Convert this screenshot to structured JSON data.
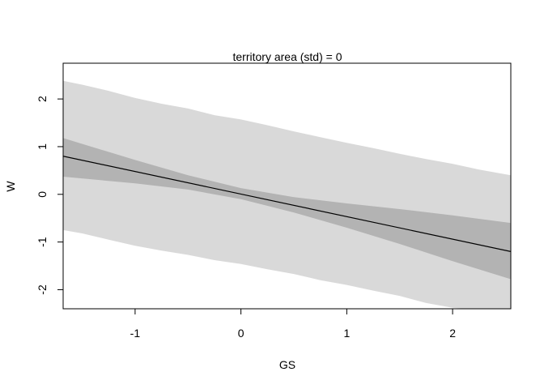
{
  "chart_data": {
    "type": "line",
    "title": "territory area (std) = 0",
    "xlabel": "GS",
    "ylabel": "W",
    "xlim": [
      -1.68,
      2.55
    ],
    "ylim": [
      -2.4,
      2.75
    ],
    "xticks": [
      -1,
      0,
      1,
      2
    ],
    "xtick_labels": [
      "-1",
      "0",
      "1",
      "2"
    ],
    "yticks": [
      -2,
      -1,
      0,
      1,
      2
    ],
    "ytick_labels": [
      "-2",
      "-1",
      "0",
      "1",
      "2"
    ],
    "grid": false,
    "colors": {
      "prediction_band": "#d9d9d9",
      "mean_band": "#b3b3b3",
      "mean_line": "#000000",
      "frame": "#000000"
    },
    "prediction_interval": {
      "x": [
        -1.68,
        -1.5,
        -1.25,
        -1.0,
        -0.75,
        -0.5,
        -0.25,
        0.0,
        0.25,
        0.5,
        0.75,
        1.0,
        1.25,
        1.5,
        1.75,
        2.0,
        2.25,
        2.55
      ],
      "upper": [
        2.38,
        2.3,
        2.17,
        2.02,
        1.9,
        1.8,
        1.66,
        1.57,
        1.45,
        1.32,
        1.2,
        1.08,
        0.97,
        0.85,
        0.74,
        0.64,
        0.52,
        0.4
      ],
      "lower": [
        -0.75,
        -0.82,
        -0.95,
        -1.08,
        -1.18,
        -1.27,
        -1.38,
        -1.46,
        -1.57,
        -1.67,
        -1.8,
        -1.9,
        -2.02,
        -2.13,
        -2.28,
        -2.38,
        -2.42,
        -2.42
      ]
    },
    "mean_interval": {
      "x": [
        -1.68,
        -1.0,
        -0.5,
        0.0,
        0.5,
        1.0,
        1.5,
        2.0,
        2.55
      ],
      "upper": [
        1.18,
        0.72,
        0.4,
        0.13,
        -0.06,
        -0.19,
        -0.31,
        -0.44,
        -0.6
      ],
      "lower": [
        0.37,
        0.23,
        0.1,
        -0.1,
        -0.38,
        -0.7,
        -1.04,
        -1.4,
        -1.78
      ]
    },
    "mean_line": {
      "x": [
        -1.68,
        2.55
      ],
      "y": [
        0.8,
        -1.2
      ]
    }
  }
}
